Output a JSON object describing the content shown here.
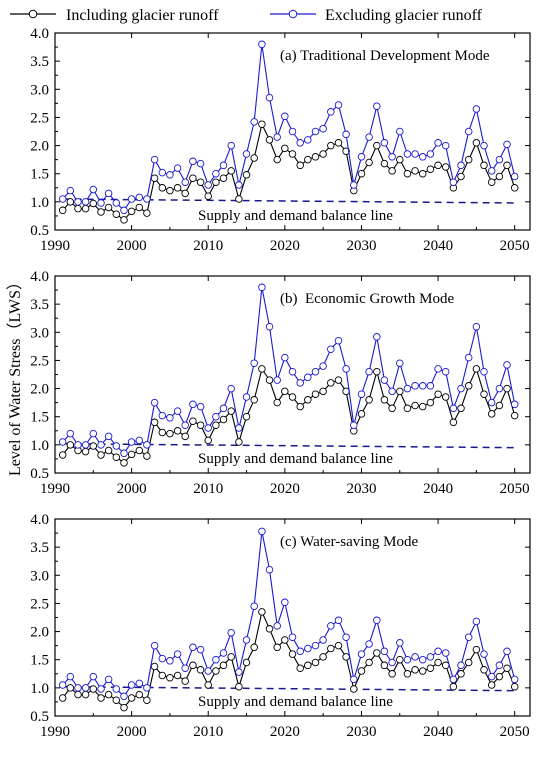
{
  "legend": {
    "placement": "top",
    "items": [
      {
        "label": "Including glacier runoff",
        "color": "#000000",
        "marker": "open-circle"
      },
      {
        "label": "Excluding glacier runoff",
        "color": "#1a1ad2",
        "marker": "open-circle"
      }
    ]
  },
  "ylabel": "Level of Water Stress（LWS）",
  "balance_line_label": "Supply and demand balance line",
  "colors": {
    "including": "#000000",
    "excluding": "#1a1ad2",
    "balance_line": "#1a1a8c"
  },
  "chart_data": [
    {
      "type": "line",
      "title": "(a) Traditional Development Mode",
      "xlim": [
        1990,
        2052
      ],
      "ylim": [
        0.5,
        4.0
      ],
      "xticks": [
        1990,
        2000,
        2010,
        2020,
        2030,
        2040,
        2050
      ],
      "yticks": [
        "0.5",
        "1.0",
        "1.5",
        "2.0",
        "2.5",
        "3.0",
        "3.5",
        "4.0"
      ],
      "grid": false,
      "x": [
        1991,
        1992,
        1993,
        1994,
        1995,
        1996,
        1997,
        1998,
        1999,
        2000,
        2001,
        2002,
        2003,
        2004,
        2005,
        2006,
        2007,
        2008,
        2009,
        2010,
        2011,
        2012,
        2013,
        2014,
        2015,
        2016,
        2017,
        2018,
        2019,
        2020,
        2021,
        2022,
        2023,
        2024,
        2025,
        2026,
        2027,
        2028,
        2029,
        2030,
        2031,
        2032,
        2033,
        2034,
        2035,
        2036,
        2037,
        2038,
        2039,
        2040,
        2041,
        2042,
        2043,
        2044,
        2045,
        2046,
        2047,
        2048,
        2049,
        2050
      ],
      "balance_line": {
        "x": [
          1991,
          2050
        ],
        "y": [
          1.05,
          0.98
        ]
      },
      "series": [
        {
          "name": "Including glacier runoff",
          "values": [
            0.85,
            1.0,
            0.88,
            0.88,
            0.97,
            0.82,
            0.9,
            0.78,
            0.68,
            0.83,
            0.9,
            0.8,
            1.42,
            1.25,
            1.2,
            1.25,
            1.15,
            1.42,
            1.35,
            1.1,
            1.35,
            1.42,
            1.55,
            1.05,
            1.48,
            1.78,
            2.38,
            2.1,
            1.75,
            1.95,
            1.85,
            1.65,
            1.75,
            1.8,
            1.85,
            2.0,
            2.05,
            1.9,
            1.2,
            1.5,
            1.7,
            2.0,
            1.68,
            1.55,
            1.75,
            1.5,
            1.55,
            1.5,
            1.58,
            1.65,
            1.62,
            1.25,
            1.45,
            1.75,
            2.05,
            1.65,
            1.35,
            1.45,
            1.65,
            1.25
          ]
        },
        {
          "name": "Excluding glacier runoff",
          "values": [
            1.05,
            1.2,
            1.0,
            1.0,
            1.22,
            0.98,
            1.15,
            0.98,
            0.85,
            1.05,
            1.08,
            1.05,
            1.75,
            1.52,
            1.48,
            1.6,
            1.35,
            1.72,
            1.68,
            1.3,
            1.5,
            1.65,
            2.0,
            1.3,
            1.85,
            2.42,
            3.8,
            2.85,
            2.15,
            2.52,
            2.25,
            2.05,
            2.1,
            2.25,
            2.3,
            2.6,
            2.72,
            2.2,
            1.3,
            1.8,
            2.15,
            2.7,
            2.05,
            1.8,
            2.25,
            1.85,
            1.85,
            1.8,
            1.85,
            2.05,
            2.0,
            1.35,
            1.65,
            2.25,
            2.65,
            2.0,
            1.55,
            1.75,
            2.02,
            1.45
          ]
        }
      ]
    },
    {
      "type": "line",
      "title": "(b)  Economic Growth Mode",
      "xlim": [
        1990,
        2052
      ],
      "ylim": [
        0.5,
        4.0
      ],
      "xticks": [
        1990,
        2000,
        2010,
        2020,
        2030,
        2040,
        2050
      ],
      "yticks": [
        "0.5",
        "1.0",
        "1.5",
        "2.0",
        "2.5",
        "3.0",
        "3.5",
        "4.0"
      ],
      "grid": false,
      "x": [
        1991,
        1992,
        1993,
        1994,
        1995,
        1996,
        1997,
        1998,
        1999,
        2000,
        2001,
        2002,
        2003,
        2004,
        2005,
        2006,
        2007,
        2008,
        2009,
        2010,
        2011,
        2012,
        2013,
        2014,
        2015,
        2016,
        2017,
        2018,
        2019,
        2020,
        2021,
        2022,
        2023,
        2024,
        2025,
        2026,
        2027,
        2028,
        2029,
        2030,
        2031,
        2032,
        2033,
        2034,
        2035,
        2036,
        2037,
        2038,
        2039,
        2040,
        2041,
        2042,
        2043,
        2044,
        2045,
        2046,
        2047,
        2048,
        2049,
        2050
      ],
      "balance_line": {
        "x": [
          1991,
          2050
        ],
        "y": [
          1.02,
          0.95
        ]
      },
      "series": [
        {
          "name": "Including glacier runoff",
          "values": [
            0.82,
            1.0,
            0.9,
            0.88,
            0.98,
            0.82,
            0.9,
            0.78,
            0.68,
            0.83,
            0.9,
            0.8,
            1.4,
            1.22,
            1.2,
            1.25,
            1.15,
            1.42,
            1.35,
            1.08,
            1.35,
            1.45,
            1.6,
            1.05,
            1.5,
            1.8,
            2.35,
            2.15,
            1.75,
            1.95,
            1.85,
            1.68,
            1.8,
            1.9,
            1.95,
            2.1,
            2.15,
            1.95,
            1.25,
            1.55,
            1.8,
            2.3,
            1.8,
            1.65,
            1.95,
            1.65,
            1.7,
            1.68,
            1.75,
            1.9,
            1.85,
            1.4,
            1.65,
            2.05,
            2.35,
            1.9,
            1.55,
            1.7,
            2.0,
            1.52
          ]
        },
        {
          "name": "Excluding glacier runoff",
          "values": [
            1.05,
            1.2,
            1.0,
            1.0,
            1.2,
            1.0,
            1.15,
            0.98,
            0.85,
            1.05,
            1.08,
            1.0,
            1.75,
            1.52,
            1.48,
            1.6,
            1.35,
            1.72,
            1.68,
            1.3,
            1.5,
            1.65,
            2.0,
            1.3,
            1.85,
            2.45,
            3.8,
            3.1,
            2.15,
            2.55,
            2.3,
            2.1,
            2.2,
            2.3,
            2.4,
            2.7,
            2.85,
            2.35,
            1.35,
            1.9,
            2.3,
            2.92,
            2.15,
            1.95,
            2.45,
            2.0,
            2.05,
            2.05,
            2.05,
            2.35,
            2.3,
            1.65,
            2.0,
            2.55,
            3.1,
            2.3,
            1.75,
            2.0,
            2.42,
            1.72
          ]
        }
      ]
    },
    {
      "type": "line",
      "title": "(c) Water-saving Mode",
      "xlim": [
        1990,
        2052
      ],
      "ylim": [
        0.5,
        4.0
      ],
      "xticks": [
        1990,
        2000,
        2010,
        2020,
        2030,
        2040,
        2050
      ],
      "yticks": [
        "0.5",
        "1.0",
        "1.5",
        "2.0",
        "2.5",
        "3.0",
        "3.5",
        "4.0"
      ],
      "grid": false,
      "x": [
        1991,
        1992,
        1993,
        1994,
        1995,
        1996,
        1997,
        1998,
        1999,
        2000,
        2001,
        2002,
        2003,
        2004,
        2005,
        2006,
        2007,
        2008,
        2009,
        2010,
        2011,
        2012,
        2013,
        2014,
        2015,
        2016,
        2017,
        2018,
        2019,
        2020,
        2021,
        2022,
        2023,
        2024,
        2025,
        2026,
        2027,
        2028,
        2029,
        2030,
        2031,
        2032,
        2033,
        2034,
        2035,
        2036,
        2037,
        2038,
        2039,
        2040,
        2041,
        2042,
        2043,
        2044,
        2045,
        2046,
        2047,
        2048,
        2049,
        2050
      ],
      "balance_line": {
        "x": [
          1991,
          2050
        ],
        "y": [
          1.02,
          0.95
        ]
      },
      "series": [
        {
          "name": "Including glacier runoff",
          "values": [
            0.82,
            1.0,
            0.88,
            0.88,
            0.98,
            0.82,
            0.88,
            0.78,
            0.65,
            0.82,
            0.88,
            0.78,
            1.38,
            1.22,
            1.18,
            1.22,
            1.12,
            1.4,
            1.32,
            1.05,
            1.3,
            1.4,
            1.55,
            1.02,
            1.45,
            1.72,
            2.35,
            2.05,
            1.72,
            1.85,
            1.6,
            1.35,
            1.4,
            1.45,
            1.55,
            1.7,
            1.75,
            1.55,
            0.98,
            1.3,
            1.45,
            1.62,
            1.4,
            1.25,
            1.5,
            1.25,
            1.32,
            1.3,
            1.35,
            1.45,
            1.4,
            1.02,
            1.25,
            1.45,
            1.68,
            1.32,
            1.05,
            1.2,
            1.35,
            1.02
          ]
        },
        {
          "name": "Excluding glacier runoff",
          "values": [
            1.05,
            1.2,
            1.0,
            1.0,
            1.2,
            0.98,
            1.15,
            0.98,
            0.85,
            1.05,
            1.08,
            1.0,
            1.75,
            1.52,
            1.48,
            1.6,
            1.35,
            1.72,
            1.68,
            1.3,
            1.5,
            1.62,
            1.98,
            1.28,
            1.85,
            2.45,
            3.78,
            3.1,
            2.1,
            2.52,
            1.9,
            1.65,
            1.7,
            1.75,
            1.85,
            2.1,
            2.2,
            1.9,
            1.15,
            1.6,
            1.78,
            2.2,
            1.65,
            1.45,
            1.8,
            1.5,
            1.55,
            1.5,
            1.55,
            1.65,
            1.62,
            1.15,
            1.4,
            1.9,
            2.18,
            1.6,
            1.2,
            1.4,
            1.65,
            1.15
          ]
        }
      ]
    }
  ]
}
